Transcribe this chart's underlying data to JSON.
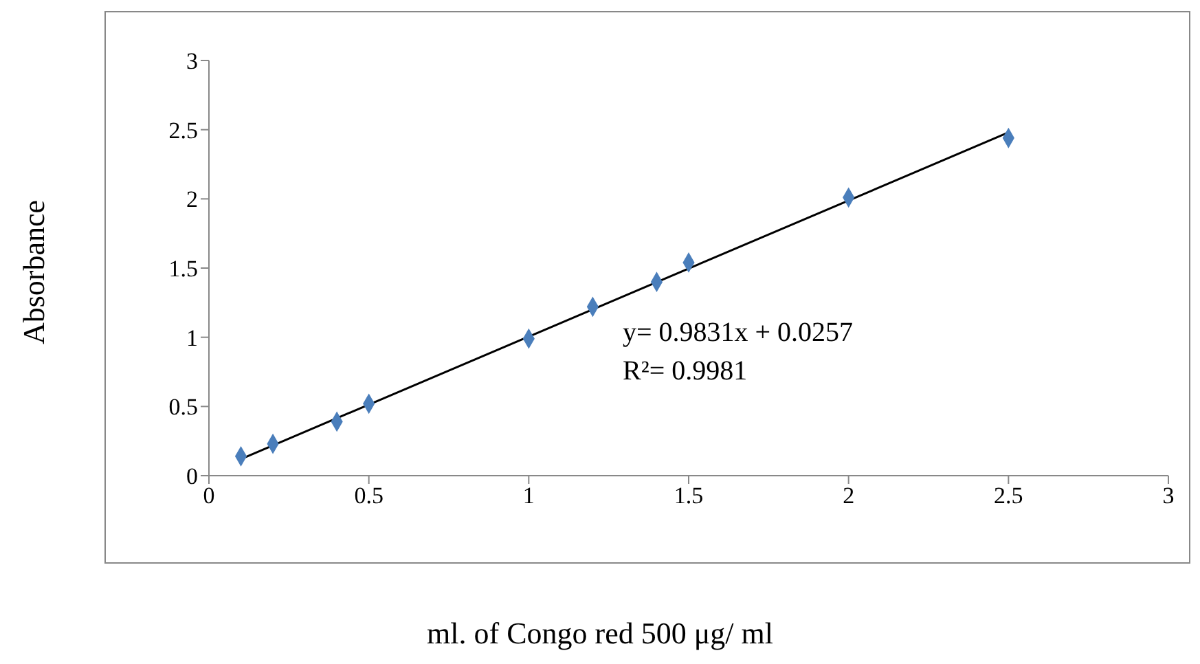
{
  "chart_data": {
    "type": "scatter",
    "xlabel": "ml. of Congo red 500 μg/ ml",
    "ylabel": "Absorbance",
    "xlim": [
      0,
      3
    ],
    "xticks": [
      0,
      0.5,
      1,
      1.5,
      2,
      2.5,
      3
    ],
    "ylim": [
      0,
      3
    ],
    "yticks": [
      0,
      0.5,
      1,
      1.5,
      2,
      2.5,
      3
    ],
    "grid": false,
    "marker": "diamond",
    "x": [
      0.1,
      0.2,
      0.4,
      0.5,
      1.0,
      1.2,
      1.4,
      1.5,
      2.0,
      2.5
    ],
    "series": [
      {
        "color": "#4a7ebb",
        "values": [
          0.14,
          0.23,
          0.39,
          0.52,
          0.99,
          1.22,
          1.4,
          1.54,
          2.01,
          2.44
        ]
      },
      {
        "type": "line",
        "color": "#000000",
        "x": [
          0.1,
          2.5
        ],
        "values": [
          0.12,
          2.48
        ],
        "marker": "none",
        "line_style": "solid"
      }
    ],
    "annotations": [
      "y= 0.9831x + 0.0257",
      "R²= 0.9981"
    ]
  }
}
